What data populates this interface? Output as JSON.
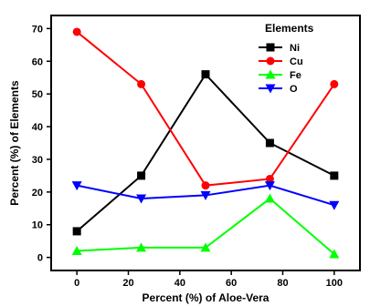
{
  "chart_data": {
    "type": "line",
    "title": "",
    "xlabel": "Percent (%) of Aloe-Vera",
    "ylabel": "Percent (%) of Elements",
    "x": [
      0,
      25,
      50,
      75,
      100
    ],
    "xlim": [
      -10,
      110
    ],
    "ylim": [
      -4,
      74
    ],
    "xticks": [
      0,
      20,
      40,
      60,
      80,
      100
    ],
    "yticks": [
      0,
      10,
      20,
      30,
      40,
      50,
      60,
      70
    ],
    "grid": false,
    "legend": {
      "title": "Elements",
      "position": "top-right"
    },
    "series": [
      {
        "name": "Ni",
        "values": [
          8,
          25,
          56,
          35,
          25
        ],
        "color": "#000000",
        "marker": "square"
      },
      {
        "name": "Cu",
        "values": [
          69,
          53,
          22,
          24,
          53
        ],
        "color": "#ff0000",
        "marker": "circle"
      },
      {
        "name": "Fe",
        "values": [
          2,
          3,
          3,
          18,
          1
        ],
        "color": "#00ff00",
        "marker": "triangle-up"
      },
      {
        "name": "O",
        "values": [
          22,
          18,
          19,
          22,
          16
        ],
        "color": "#0000ff",
        "marker": "triangle-down"
      }
    ]
  }
}
